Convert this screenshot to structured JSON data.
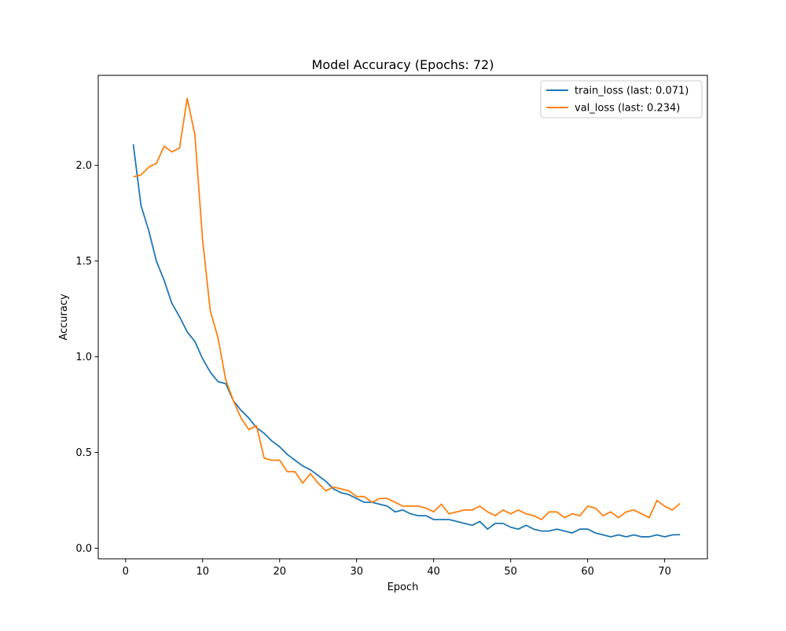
{
  "chart_data": {
    "type": "line",
    "title": "Model Accuracy (Epochs: 72)",
    "xlabel": "Epoch",
    "ylabel": "Accuracy",
    "xlim": [
      -3.55,
      75.55
    ],
    "ylim": [
      -0.055,
      2.47
    ],
    "xticks": [
      0,
      10,
      20,
      30,
      40,
      50,
      60,
      70
    ],
    "xtick_labels": [
      "0",
      "10",
      "20",
      "30",
      "40",
      "50",
      "60",
      "70"
    ],
    "yticks": [
      0.0,
      0.5,
      1.0,
      1.5,
      2.0
    ],
    "ytick_labels": [
      "0.0",
      "0.5",
      "1.0",
      "1.5",
      "2.0"
    ],
    "grid": false,
    "legend_position": "top-right",
    "series": [
      {
        "name": "train_loss (last: 0.071)",
        "color": "#1f77b4",
        "x": [
          1,
          2,
          3,
          4,
          5,
          6,
          7,
          8,
          9,
          10,
          11,
          12,
          13,
          14,
          15,
          16,
          17,
          18,
          19,
          20,
          21,
          22,
          23,
          24,
          25,
          26,
          27,
          28,
          29,
          30,
          31,
          32,
          33,
          34,
          35,
          36,
          37,
          38,
          39,
          40,
          41,
          42,
          43,
          44,
          45,
          46,
          47,
          48,
          49,
          50,
          51,
          52,
          53,
          54,
          55,
          56,
          57,
          58,
          59,
          60,
          61,
          62,
          63,
          64,
          65,
          66,
          67,
          68,
          69,
          70,
          71,
          72
        ],
        "values": [
          2.11,
          1.79,
          1.66,
          1.5,
          1.4,
          1.28,
          1.21,
          1.13,
          1.08,
          0.99,
          0.92,
          0.87,
          0.86,
          0.77,
          0.72,
          0.68,
          0.63,
          0.6,
          0.56,
          0.53,
          0.49,
          0.46,
          0.43,
          0.41,
          0.38,
          0.35,
          0.31,
          0.29,
          0.28,
          0.26,
          0.24,
          0.24,
          0.23,
          0.22,
          0.19,
          0.2,
          0.18,
          0.17,
          0.17,
          0.15,
          0.15,
          0.15,
          0.14,
          0.13,
          0.12,
          0.14,
          0.1,
          0.13,
          0.13,
          0.11,
          0.1,
          0.12,
          0.1,
          0.09,
          0.09,
          0.1,
          0.09,
          0.08,
          0.1,
          0.1,
          0.08,
          0.07,
          0.06,
          0.07,
          0.06,
          0.07,
          0.06,
          0.06,
          0.07,
          0.06,
          0.07,
          0.071
        ]
      },
      {
        "name": "val_loss (last: 0.234)",
        "color": "#ff7f0e",
        "x": [
          1,
          2,
          3,
          4,
          5,
          6,
          7,
          8,
          9,
          10,
          11,
          12,
          13,
          14,
          15,
          16,
          17,
          18,
          19,
          20,
          21,
          22,
          23,
          24,
          25,
          26,
          27,
          28,
          29,
          30,
          31,
          32,
          33,
          34,
          35,
          36,
          37,
          38,
          39,
          40,
          41,
          42,
          43,
          44,
          45,
          46,
          47,
          48,
          49,
          50,
          51,
          52,
          53,
          54,
          55,
          56,
          57,
          58,
          59,
          60,
          61,
          62,
          63,
          64,
          65,
          66,
          67,
          68,
          69,
          70,
          71,
          72
        ],
        "values": [
          1.94,
          1.95,
          1.99,
          2.01,
          2.1,
          2.07,
          2.09,
          2.35,
          2.16,
          1.61,
          1.24,
          1.1,
          0.88,
          0.77,
          0.68,
          0.62,
          0.64,
          0.47,
          0.46,
          0.46,
          0.4,
          0.4,
          0.34,
          0.39,
          0.34,
          0.3,
          0.32,
          0.31,
          0.3,
          0.27,
          0.27,
          0.24,
          0.26,
          0.26,
          0.24,
          0.22,
          0.22,
          0.22,
          0.21,
          0.19,
          0.23,
          0.18,
          0.19,
          0.2,
          0.2,
          0.22,
          0.19,
          0.17,
          0.2,
          0.18,
          0.2,
          0.18,
          0.17,
          0.15,
          0.19,
          0.19,
          0.16,
          0.18,
          0.17,
          0.22,
          0.21,
          0.17,
          0.19,
          0.16,
          0.19,
          0.2,
          0.18,
          0.16,
          0.25,
          0.22,
          0.2,
          0.234
        ]
      }
    ]
  }
}
